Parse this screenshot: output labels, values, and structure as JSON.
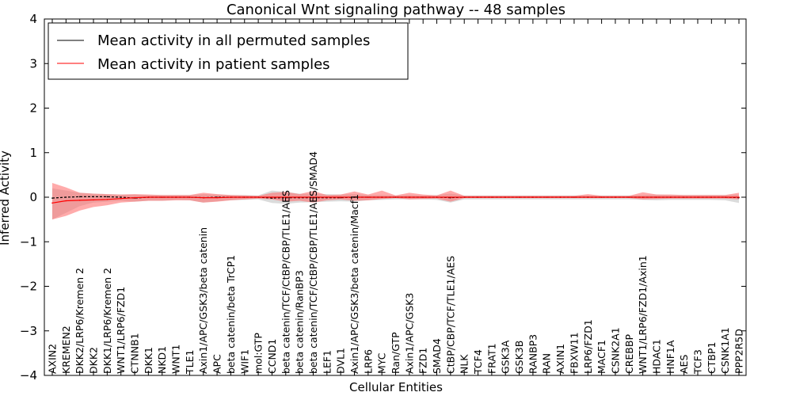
{
  "chart_data": {
    "type": "line",
    "title": "Canonical Wnt signaling pathway -- 48 samples",
    "xlabel": "Cellular Entities",
    "ylabel": "Inferred Activity",
    "ylim": [
      -4,
      4
    ],
    "yticks": [
      4,
      3,
      2,
      1,
      0,
      -1,
      -2,
      -3,
      -4
    ],
    "ytick_labels": [
      "4",
      "3",
      "2",
      "1",
      "0",
      "−1",
      "−2",
      "−3",
      "−4"
    ],
    "grid": false,
    "legend": {
      "placement": "top-left",
      "entries": [
        "Mean activity in all permuted samples",
        "Mean activity in patient samples"
      ]
    },
    "categories": [
      "AXIN2",
      "KREMEN2",
      "DKK2/LRP6/Kremen 2",
      "DKK2",
      "DKK1/LRP6/Kremen 2",
      "WNT1/LRP6/FZD1",
      "CTNNB1",
      "DKK1",
      "NKD1",
      "WNT1",
      "TLE1",
      "Axin1/APC/GSK3/beta catenin",
      "APC",
      "beta catenin/beta TrCP1",
      "WIF1",
      "mol:GTP",
      "CCND1",
      "beta catenin/TCF/CtBP/CBP/TLE1/AES",
      "beta catenin/RanBP3",
      "beta catenin/TCF/CtBP/CBP/TLE1/AES/SMAD4",
      "LEF1",
      "DVL1",
      "Axin1/APC/GSK3/beta catenin/Macf1",
      "LRP6",
      "MYC",
      "Ran/GTP",
      "Axin1/APC/GSK3",
      "FZD1",
      "SMAD4",
      "CtBP/CBP/TCF/TLE1/AES",
      "NLK",
      "TCF4",
      "FRAT1",
      "GSK3A",
      "GSK3B",
      "RANBP3",
      "RAN",
      "AXIN1",
      "FBXW11",
      "LRP6/FZD1",
      "MACF1",
      "CSNK2A1",
      "CREBBP",
      "WNT1/LRP6/FZD1/Axin1",
      "HDAC1",
      "HNF1A",
      "AES",
      "TCF3",
      "CTBP1",
      "CSNK1A1",
      "PPP2R5D"
    ],
    "series": [
      {
        "name": "Mean activity in all permuted samples",
        "color": "#000000",
        "band_color": "#b0b0b0",
        "values": [
          -0.02,
          0.0,
          0.01,
          0.01,
          0.01,
          0.0,
          -0.02,
          0.0,
          0.0,
          0.0,
          0.0,
          -0.01,
          0.0,
          0.0,
          0.0,
          0.0,
          -0.02,
          -0.01,
          -0.01,
          -0.01,
          -0.01,
          -0.01,
          0.0,
          0.0,
          0.0,
          0.0,
          0.0,
          0.0,
          0.0,
          -0.01,
          0.0,
          0.0,
          0.0,
          0.0,
          0.0,
          0.0,
          0.0,
          0.0,
          0.0,
          0.0,
          0.0,
          0.0,
          0.0,
          0.0,
          0.0,
          0.0,
          0.0,
          0.0,
          0.0,
          0.0,
          -0.01
        ],
        "lower": [
          -0.5,
          -0.35,
          -0.2,
          -0.12,
          -0.1,
          -0.08,
          -0.1,
          -0.08,
          -0.08,
          -0.06,
          -0.07,
          -0.12,
          -0.09,
          -0.07,
          -0.06,
          -0.05,
          -0.13,
          -0.15,
          -0.12,
          -0.11,
          -0.1,
          -0.09,
          -0.1,
          -0.07,
          -0.06,
          -0.05,
          -0.05,
          -0.05,
          -0.06,
          -0.12,
          -0.05,
          -0.05,
          -0.05,
          -0.05,
          -0.05,
          -0.05,
          -0.05,
          -0.05,
          -0.05,
          -0.05,
          -0.05,
          -0.05,
          -0.05,
          -0.06,
          -0.07,
          -0.06,
          -0.06,
          -0.06,
          -0.06,
          -0.07,
          -0.13
        ],
        "upper": [
          0.2,
          0.15,
          0.1,
          0.08,
          0.07,
          0.06,
          0.06,
          0.05,
          0.05,
          0.05,
          0.05,
          0.07,
          0.06,
          0.05,
          0.05,
          0.04,
          0.15,
          0.12,
          0.08,
          0.07,
          0.07,
          0.06,
          0.07,
          0.05,
          0.05,
          0.04,
          0.05,
          0.04,
          0.05,
          0.08,
          0.04,
          0.04,
          0.04,
          0.04,
          0.04,
          0.04,
          0.04,
          0.04,
          0.04,
          0.04,
          0.04,
          0.04,
          0.04,
          0.05,
          0.06,
          0.05,
          0.05,
          0.05,
          0.05,
          0.05,
          0.06
        ]
      },
      {
        "name": "Mean activity in patient samples",
        "color": "#ff0000",
        "band_color": "#ff6666",
        "values": [
          -0.13,
          -0.08,
          -0.07,
          -0.06,
          -0.05,
          -0.03,
          -0.01,
          0.0,
          0.0,
          0.0,
          0.0,
          -0.01,
          -0.01,
          0.0,
          0.0,
          0.0,
          0.0,
          0.0,
          0.0,
          0.0,
          0.0,
          0.0,
          0.0,
          0.0,
          0.0,
          0.0,
          0.0,
          0.0,
          0.0,
          0.0,
          0.0,
          0.0,
          0.0,
          0.0,
          0.0,
          0.0,
          0.0,
          0.0,
          0.0,
          0.0,
          0.0,
          0.0,
          0.0,
          0.0,
          0.0,
          0.0,
          0.0,
          0.0,
          0.0,
          0.0,
          0.0
        ],
        "lower": [
          -0.5,
          -0.42,
          -0.3,
          -0.22,
          -0.18,
          -0.12,
          -0.1,
          -0.08,
          -0.08,
          -0.07,
          -0.07,
          -0.12,
          -0.1,
          -0.07,
          -0.05,
          -0.03,
          -0.05,
          -0.1,
          -0.08,
          -0.12,
          -0.07,
          -0.05,
          -0.08,
          -0.07,
          -0.04,
          -0.02,
          -0.05,
          -0.04,
          -0.03,
          -0.1,
          -0.02,
          -0.02,
          -0.02,
          -0.02,
          -0.02,
          -0.02,
          -0.02,
          -0.02,
          -0.02,
          -0.02,
          -0.02,
          -0.02,
          -0.02,
          -0.05,
          -0.04,
          -0.03,
          -0.03,
          -0.03,
          -0.03,
          -0.03,
          -0.05
        ],
        "upper": [
          0.32,
          0.22,
          0.1,
          0.08,
          0.07,
          0.06,
          0.07,
          0.06,
          0.05,
          0.05,
          0.05,
          0.1,
          0.07,
          0.05,
          0.04,
          0.03,
          0.1,
          0.12,
          0.07,
          0.14,
          0.05,
          0.06,
          0.13,
          0.06,
          0.15,
          0.04,
          0.1,
          0.06,
          0.04,
          0.15,
          0.03,
          0.03,
          0.03,
          0.03,
          0.03,
          0.03,
          0.03,
          0.03,
          0.03,
          0.07,
          0.03,
          0.03,
          0.03,
          0.11,
          0.06,
          0.06,
          0.05,
          0.05,
          0.05,
          0.05,
          0.1
        ]
      }
    ]
  }
}
